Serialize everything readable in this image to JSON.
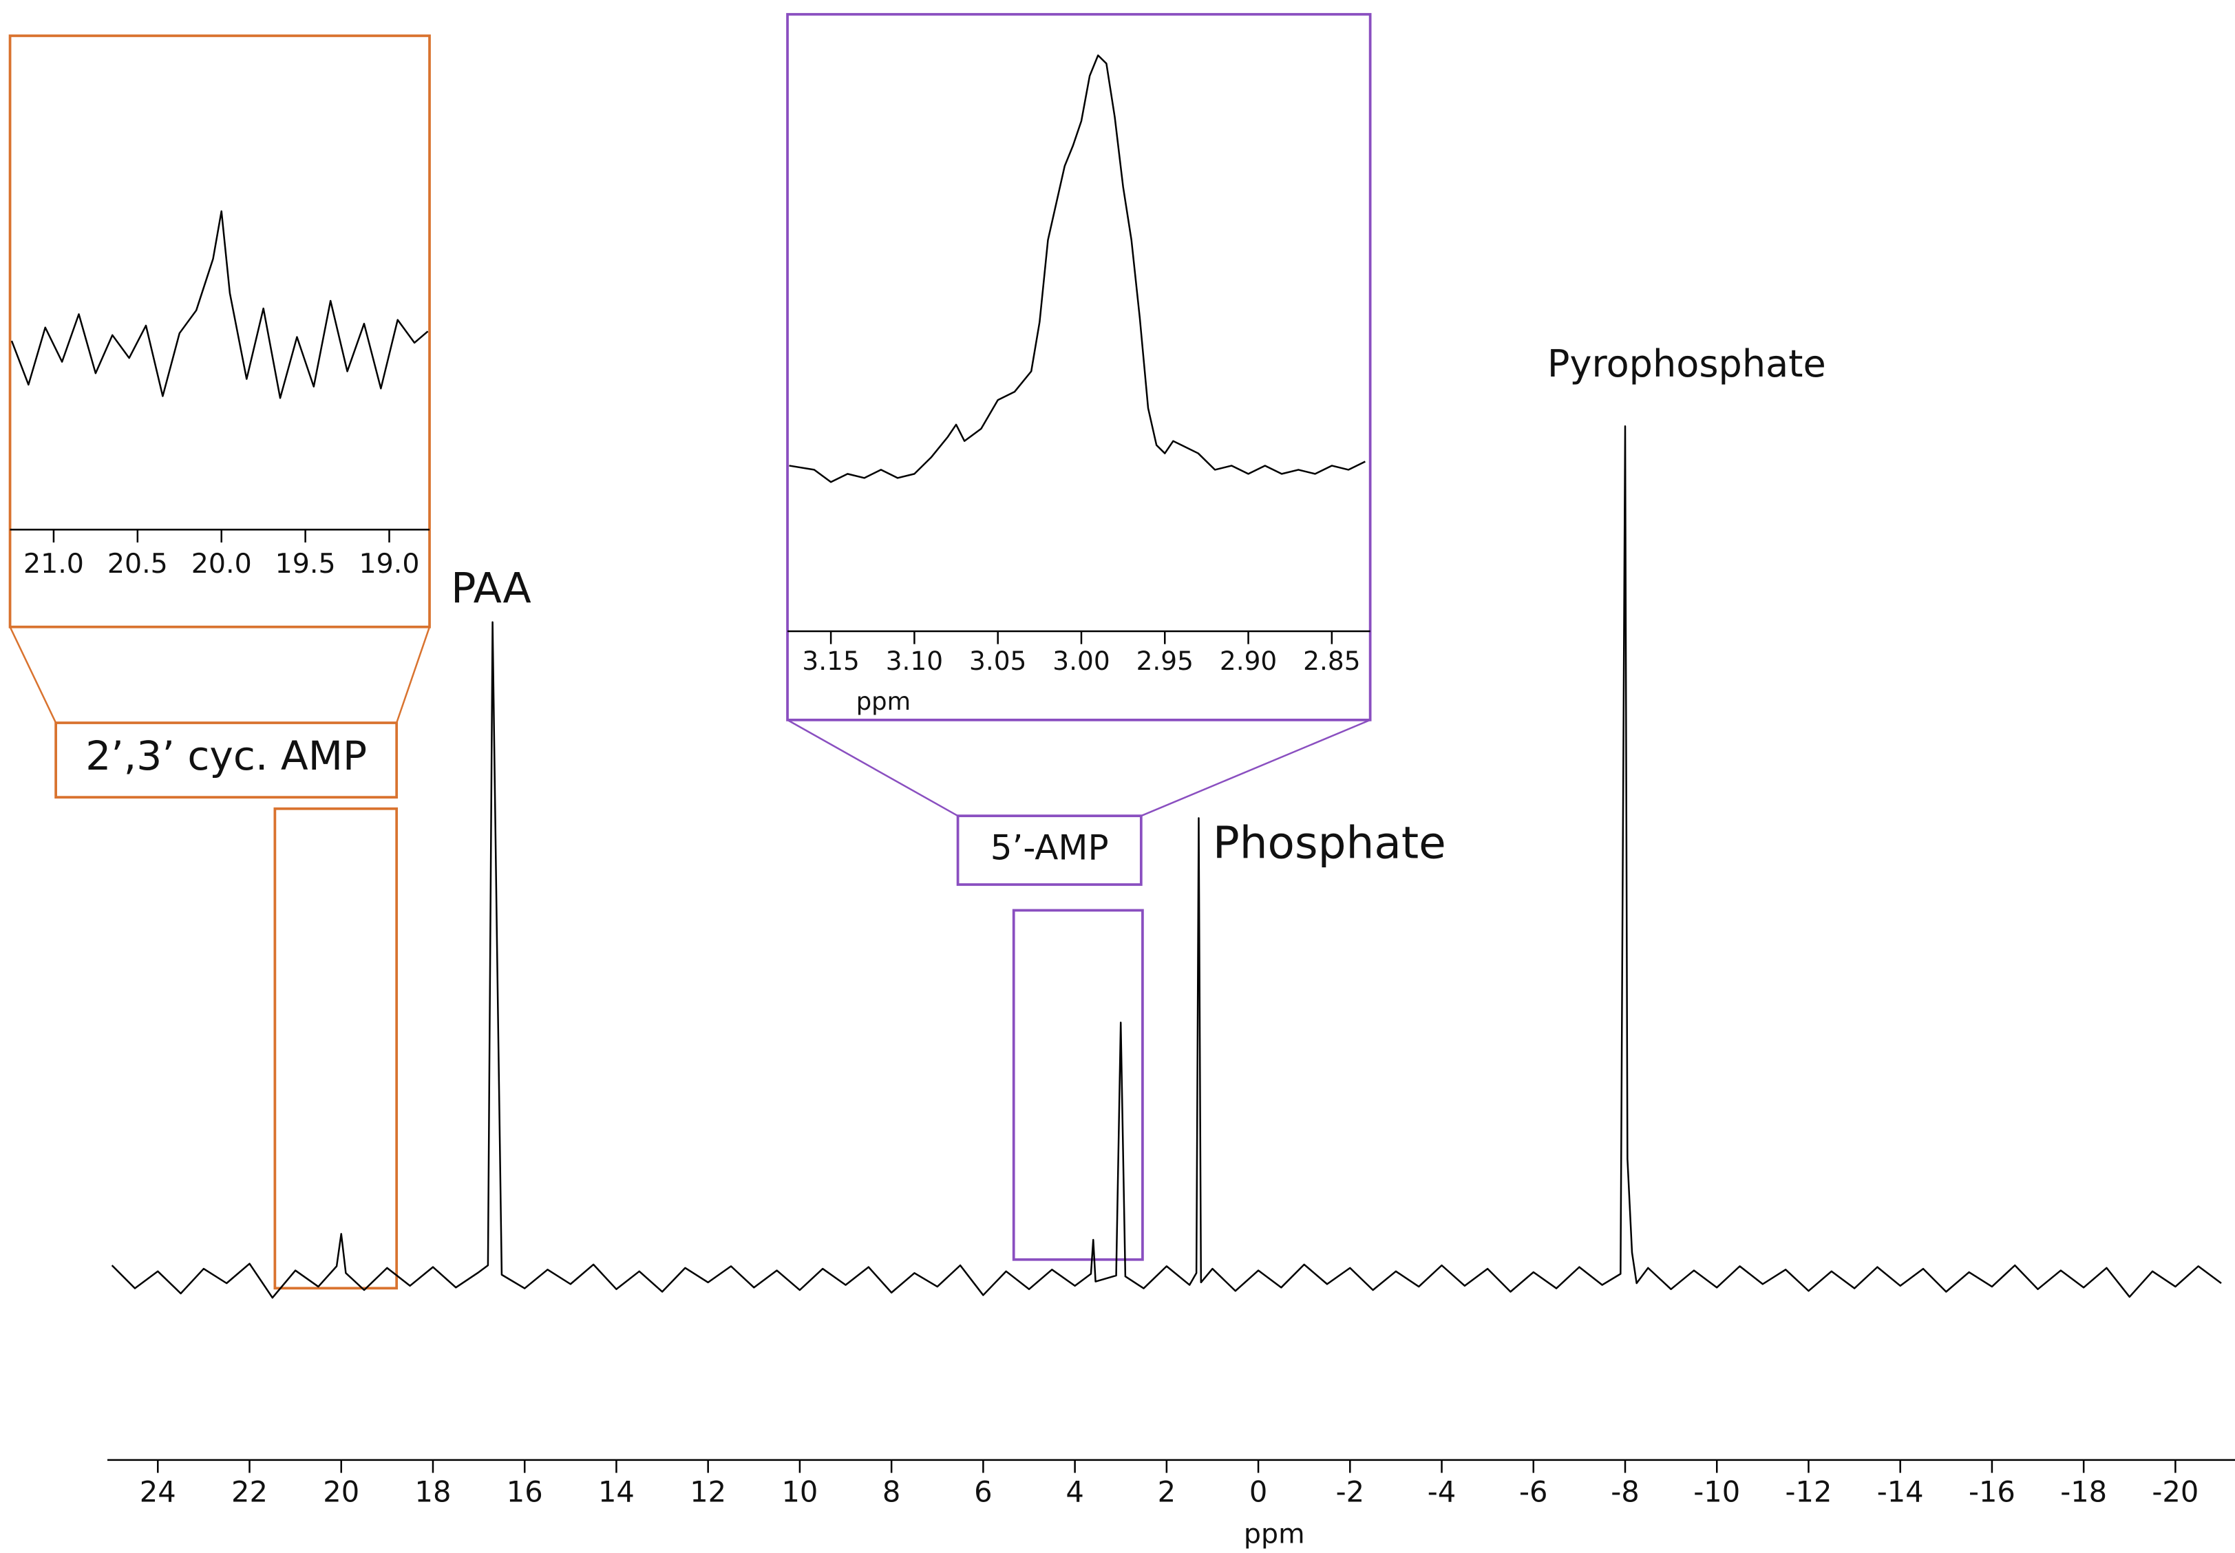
{
  "chart_data": [
    {
      "type": "line",
      "color": "#000000",
      "xlabel": "ppm",
      "xlim": [
        25.1,
        -21.3
      ],
      "ylim": [
        -20,
        105
      ],
      "xticks": [
        24,
        22,
        20,
        18,
        16,
        14,
        12,
        10,
        8,
        6,
        4,
        2,
        0,
        -2,
        -4,
        -6,
        -8,
        -10,
        -12,
        -14,
        -16,
        -18,
        -20
      ],
      "x": [
        25,
        24.5,
        24,
        23.5,
        23,
        22.5,
        22,
        21.5,
        21,
        20.5,
        20.1,
        20.0,
        19.9,
        19.5,
        19,
        18.5,
        18,
        17.5,
        17,
        16.8,
        16.7,
        16.6,
        16.5,
        16,
        15.5,
        15,
        14.5,
        14,
        13.5,
        13,
        12.5,
        12,
        11.5,
        11,
        10.5,
        10,
        9.5,
        9,
        8.5,
        8,
        7.5,
        7,
        6.5,
        6,
        5.5,
        5,
        4.5,
        4,
        3.65,
        3.6,
        3.55,
        3.1,
        3.0,
        2.9,
        2.5,
        2,
        1.5,
        1.35,
        1.3,
        1.25,
        1,
        0.5,
        0,
        -0.5,
        -1,
        -1.5,
        -2,
        -2.5,
        -3,
        -3.5,
        -4,
        -4.5,
        -5,
        -5.5,
        -6,
        -6.5,
        -7,
        -7.5,
        -7.9,
        -8.0,
        -8.05,
        -8.15,
        -8.25,
        -8.5,
        -9,
        -9.5,
        -10,
        -10.5,
        -11,
        -11.5,
        -12,
        -12.5,
        -13,
        -13.5,
        -14,
        -14.5,
        -15,
        -15.5,
        -16,
        -16.5,
        -17,
        -17.5,
        -18,
        -18.5,
        -19,
        -19.5,
        -20,
        -20.5,
        -21
      ],
      "values": [
        1.5,
        -1.2,
        0.8,
        -1.8,
        1.1,
        -0.6,
        1.7,
        -2.3,
        0.9,
        -1.0,
        1.4,
        5.2,
        0.6,
        -1.4,
        1.2,
        -0.9,
        1.3,
        -1.1,
        0.7,
        1.5,
        77,
        38,
        0.4,
        -1.2,
        1.0,
        -0.7,
        1.6,
        -1.3,
        0.8,
        -1.6,
        1.2,
        -0.5,
        1.4,
        -1.1,
        0.9,
        -1.4,
        1.1,
        -0.8,
        1.3,
        -1.7,
        0.6,
        -1.0,
        1.5,
        -2.0,
        0.8,
        -1.3,
        1.0,
        -0.9,
        0.5,
        4.5,
        -0.4,
        0.3,
        30,
        0.2,
        -1.2,
        1.4,
        -0.8,
        0.6,
        54,
        -0.5,
        1.1,
        -1.5,
        0.9,
        -1.1,
        1.6,
        -0.7,
        1.2,
        -1.4,
        0.8,
        -1.0,
        1.5,
        -0.9,
        1.1,
        -1.6,
        0.7,
        -1.2,
        1.3,
        -0.8,
        0.5,
        100,
        14,
        3,
        -0.6,
        1.2,
        -1.3,
        0.9,
        -1.1,
        1.4,
        -0.7,
        1.0,
        -1.5,
        0.8,
        -1.2,
        1.3,
        -0.9,
        1.1,
        -1.6,
        0.7,
        -1.0,
        1.5,
        -1.3,
        0.9,
        -1.1,
        1.2,
        -2.2,
        0.8,
        -1.0,
        1.4,
        -0.6
      ],
      "annotations": [
        "PAA",
        "Phosphate",
        "Pyrophosphate",
        "2’,3’ cyc. AMP",
        "5’-AMP"
      ]
    },
    {
      "type": "line",
      "color": "#000000",
      "xlim": [
        21.26,
        18.76
      ],
      "ylim": [
        -9.4,
        16.5
      ],
      "xticks": [
        {
          "value": 21,
          "label": "21.0"
        },
        20.5,
        {
          "value": 20,
          "label": "20.0"
        },
        19.5,
        {
          "value": 19,
          "label": "19.0"
        }
      ],
      "x": [
        21.25,
        21.15,
        21.05,
        20.95,
        20.85,
        20.75,
        20.65,
        20.55,
        20.45,
        20.35,
        20.25,
        20.15,
        20.05,
        20.0,
        19.95,
        19.85,
        19.75,
        19.65,
        19.55,
        19.45,
        19.35,
        19.25,
        19.15,
        19.05,
        18.95,
        18.85,
        18.77
      ],
      "values": [
        0.5,
        -1.8,
        1.2,
        -0.6,
        1.9,
        -1.2,
        0.8,
        -0.4,
        1.3,
        -2.4,
        0.9,
        2.1,
        4.8,
        7.3,
        3.0,
        -1.5,
        2.2,
        -2.5,
        0.7,
        -1.9,
        2.6,
        -1.1,
        1.4,
        -2.0,
        1.6,
        0.4,
        1.0
      ]
    },
    {
      "type": "line",
      "color": "#000000",
      "xlabel": "ppm",
      "xlim": [
        3.176,
        2.827
      ],
      "ylim": [
        -40,
        110
      ],
      "xticks": [
        3.15,
        {
          "value": 3.1,
          "label": "3.10"
        },
        3.05,
        {
          "value": 3,
          "label": "3.00"
        },
        2.95,
        {
          "value": 2.9,
          "label": "2.90"
        },
        2.85
      ],
      "x": [
        3.175,
        3.16,
        3.15,
        3.14,
        3.13,
        3.12,
        3.11,
        3.1,
        3.09,
        3.08,
        3.075,
        3.07,
        3.06,
        3.05,
        3.04,
        3.03,
        3.025,
        3.02,
        3.01,
        3.005,
        3.0,
        2.995,
        2.99,
        2.985,
        2.98,
        2.975,
        2.97,
        2.965,
        2.96,
        2.955,
        2.95,
        2.945,
        2.94,
        2.93,
        2.92,
        2.91,
        2.9,
        2.89,
        2.88,
        2.87,
        2.86,
        2.85,
        2.84,
        2.83
      ],
      "values": [
        0,
        -1,
        -4,
        -2,
        -3,
        -1,
        -3,
        -2,
        2,
        7,
        10,
        6,
        9,
        16,
        18,
        23,
        35,
        55,
        73,
        78,
        84,
        95,
        100,
        98,
        85,
        68,
        55,
        36,
        14,
        5,
        3,
        6,
        5,
        3,
        -1,
        0,
        -2,
        0,
        -2,
        -1,
        -2,
        0,
        -1,
        1
      ]
    }
  ]
}
